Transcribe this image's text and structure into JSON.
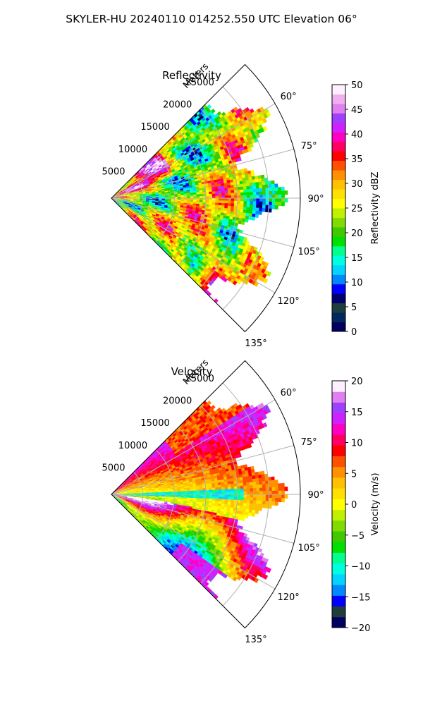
{
  "figure_title": "SKYLER-HU  20240110  014252.550 UTC Elevation 06°",
  "chart_data": [
    {
      "type": "heatmap",
      "panel": "polar-sector",
      "title": "Reflectivity",
      "radial_label": "Meters",
      "radial_ticks": [
        "5000",
        "10000",
        "15000",
        "20000",
        "25000"
      ],
      "radial_tick_values": [
        5000,
        10000,
        15000,
        20000,
        25000
      ],
      "rlim": [
        0,
        30000
      ],
      "angle_ticks": [
        "60°",
        "75°",
        "90°",
        "105°",
        "120°",
        "135°"
      ],
      "angle_tick_values": [
        60,
        75,
        90,
        105,
        120,
        135
      ],
      "theta_range_deg": [
        45,
        135
      ],
      "grid": true,
      "colorbar": {
        "label": "Reflectivity dBZ",
        "range": [
          0,
          50
        ],
        "tick_labels": [
          "0",
          "5",
          "10",
          "15",
          "20",
          "25",
          "30",
          "35",
          "40",
          "45",
          "50"
        ],
        "tick_values": [
          0,
          5,
          10,
          15,
          20,
          25,
          30,
          35,
          40,
          45,
          50
        ],
        "colors": [
          "#000060",
          "#002a5e",
          "#1e3e3e",
          "#00006e",
          "#0000ff",
          "#0088ff",
          "#00d4ff",
          "#00ffe0",
          "#00ff90",
          "#00e000",
          "#40c800",
          "#80dc00",
          "#c0f000",
          "#ffff00",
          "#ffe000",
          "#ffc000",
          "#ff9000",
          "#ff5000",
          "#ff0000",
          "#ff0060",
          "#ff00c0",
          "#d020ff",
          "#a040ff",
          "#e080f0",
          "#f0b0f0",
          "#fff0ff"
        ]
      }
    },
    {
      "type": "heatmap",
      "panel": "polar-sector",
      "title": "Velocity",
      "radial_label": "Meters",
      "radial_ticks": [
        "5000",
        "10000",
        "15000",
        "20000",
        "25000"
      ],
      "radial_tick_values": [
        5000,
        10000,
        15000,
        20000,
        25000
      ],
      "rlim": [
        0,
        30000
      ],
      "angle_ticks": [
        "60°",
        "75°",
        "90°",
        "105°",
        "120°",
        "135°"
      ],
      "angle_tick_values": [
        60,
        75,
        90,
        105,
        120,
        135
      ],
      "theta_range_deg": [
        45,
        135
      ],
      "grid": true,
      "colorbar": {
        "label": "Velocity (m/s)",
        "range": [
          -20,
          20
        ],
        "tick_labels": [
          "−20",
          "−15",
          "−10",
          "−5",
          "0",
          "5",
          "10",
          "15",
          "20"
        ],
        "tick_values": [
          -20,
          -15,
          -10,
          -5,
          0,
          5,
          10,
          15,
          20
        ],
        "colors": [
          "#000060",
          "#1e3e3e",
          "#0000ff",
          "#0088ff",
          "#00d4ff",
          "#00ffe0",
          "#00ff90",
          "#00e000",
          "#40c800",
          "#80dc00",
          "#c0f000",
          "#ffff00",
          "#ffe000",
          "#ffc000",
          "#ff9000",
          "#ff5000",
          "#ff0000",
          "#ff0060",
          "#ff00c0",
          "#d020ff",
          "#a040ff",
          "#e080f0",
          "#fff0ff"
        ]
      }
    }
  ]
}
